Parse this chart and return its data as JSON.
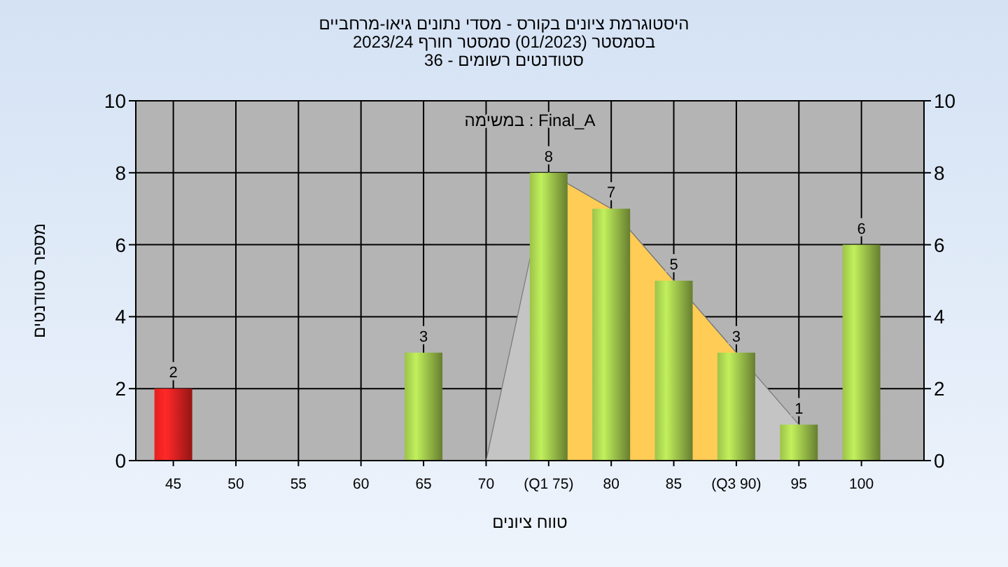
{
  "chart_data": {
    "type": "bar",
    "title": "היסטוגרמת ציונים בקורס - מסדי נתונים גיאו-מרחביים",
    "subtitle": "בסמסטר  (01/2023)  סמסטר חורף 2023/24\nסטודנטים רשומים - 36",
    "xlabel": "טווח ציונים",
    "ylabel": "מספר סטודנטים",
    "annotations": [
      "במשימה : Final_A"
    ],
    "series": [
      {
        "type": "area",
        "color": "#c4c4c4",
        "x": [
          70,
          75,
          80,
          85,
          90,
          95
        ],
        "values": [
          0,
          8,
          7,
          5,
          3,
          1
        ]
      },
      {
        "type": "area",
        "color": "#ffcc55",
        "x": [
          75,
          80,
          85,
          90
        ],
        "values": [
          8,
          7,
          5,
          3
        ]
      },
      {
        "x": [
          45,
          65,
          75,
          80,
          85,
          90,
          95,
          100
        ],
        "values": [
          2,
          3,
          8,
          7,
          5,
          3,
          1,
          6
        ],
        "value_labels": [
          "2",
          "3",
          "8",
          "7",
          "5",
          "3",
          "1",
          "6"
        ],
        "colors": [
          "#e52020",
          "#9cc24a",
          "#9cc24a",
          "#9cc24a",
          "#9cc24a",
          "#9cc24a",
          "#9cc24a",
          "#9cc24a"
        ]
      }
    ],
    "xlim": [
      42,
      105
    ],
    "xticks": [
      45,
      50,
      55,
      60,
      65,
      70,
      {
        "value": 75,
        "label": "(Q1 75)"
      },
      80,
      85,
      {
        "value": 90,
        "label": "(Q3 90)"
      },
      95,
      100
    ],
    "ylim": [
      0,
      10
    ],
    "yticks": [
      0,
      2,
      4,
      6,
      8,
      10
    ],
    "y2lim": [
      0,
      10
    ],
    "y2ticks": [
      0,
      2,
      4,
      6,
      8,
      10
    ],
    "grid": true
  }
}
